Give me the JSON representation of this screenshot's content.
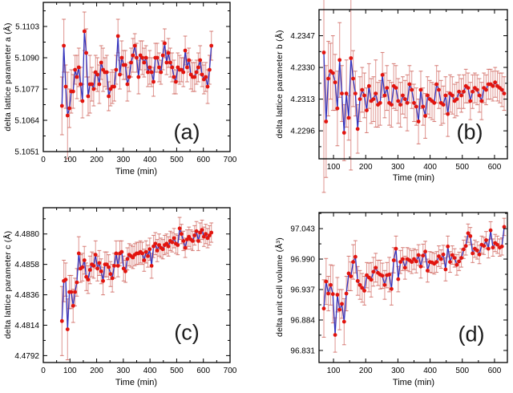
{
  "colors": {
    "marker": "#e2140e",
    "line": "#3434bd",
    "errorbar": "rgba(203,80,72,0.55)",
    "errorcap": "rgba(206,96,88,0.75)",
    "frame": "#000000",
    "text": "#000000"
  },
  "chart_data": [
    {
      "type": "line",
      "panel_label": "(a)",
      "xlabel": "Time (min)",
      "ylabel": "delta lattice parameter a (Å)",
      "xlim": [
        0,
        700
      ],
      "ylim": [
        5.1051,
        5.1113
      ],
      "xticks": [
        "0",
        "100",
        "200",
        "300",
        "400",
        "500",
        "600",
        "700"
      ],
      "yticks": [
        "5.1051",
        "5.1064",
        "5.1077",
        "5.1090",
        "5.1103"
      ],
      "grid": false,
      "x": [
        70,
        77,
        84,
        91,
        98,
        105,
        112,
        119,
        126,
        133,
        140,
        147,
        154,
        161,
        168,
        175,
        182,
        189,
        196,
        203,
        210,
        217,
        224,
        231,
        238,
        245,
        252,
        259,
        266,
        273,
        280,
        287,
        294,
        301,
        308,
        315,
        322,
        329,
        336,
        343,
        350,
        357,
        364,
        371,
        378,
        385,
        392,
        399,
        406,
        413,
        420,
        427,
        434,
        441,
        448,
        455,
        462,
        469,
        476,
        483,
        490,
        497,
        504,
        511,
        518,
        525,
        532,
        539,
        546,
        553,
        560,
        567,
        574,
        581,
        588,
        595,
        602,
        609,
        616,
        623,
        630
      ],
      "y": [
        5.107,
        5.1095,
        5.1078,
        5.1066,
        5.1069,
        5.1076,
        5.1076,
        5.1085,
        5.1082,
        5.1086,
        5.1079,
        5.1072,
        5.1101,
        5.1092,
        5.1074,
        5.1079,
        5.1079,
        5.1077,
        5.1084,
        5.1083,
        5.1079,
        5.1088,
        5.1085,
        5.1084,
        5.1084,
        5.1074,
        5.1077,
        5.1078,
        5.1078,
        5.1085,
        5.1099,
        5.1083,
        5.109,
        5.1087,
        5.1087,
        5.1079,
        5.1082,
        5.1088,
        5.1091,
        5.1095,
        5.109,
        5.1082,
        5.1091,
        5.109,
        5.1088,
        5.109,
        5.1084,
        5.1086,
        5.1084,
        5.108,
        5.109,
        5.109,
        5.1086,
        5.1084,
        5.1091,
        5.1096,
        5.1088,
        5.1092,
        5.1088,
        5.1086,
        5.1082,
        5.108,
        5.1086,
        5.1085,
        5.1085,
        5.1084,
        5.1093,
        5.1086,
        5.1089,
        5.1083,
        5.1082,
        5.1082,
        5.1084,
        5.1086,
        5.1089,
        5.1083,
        5.1081,
        5.1082,
        5.1078,
        5.1085,
        5.1095
      ],
      "yerr": [
        0.0012,
        0.0011,
        0.0009,
        0.0018,
        0.0008,
        0.0009,
        0.0007,
        0.0006,
        0.0009,
        0.0008,
        0.0007,
        0.0007,
        0.0008,
        0.001,
        0.0008,
        0.0012,
        0.0007,
        0.0007,
        0.0007,
        0.0007,
        0.0008,
        0.0007,
        0.0009,
        0.0006,
        0.0007,
        0.0006,
        0.0007,
        0.0007,
        0.0006,
        0.0006,
        0.0007,
        0.0006,
        0.0007,
        0.0006,
        0.0006,
        0.0007,
        0.0006,
        0.0006,
        0.0007,
        0.0005,
        0.0006,
        0.0007,
        0.0006,
        0.0007,
        0.0006,
        0.0005,
        0.0006,
        0.0007,
        0.0006,
        0.0006,
        0.0006,
        0.0006,
        0.0006,
        0.0005,
        0.0006,
        0.0006,
        0.0005,
        0.0006,
        0.0006,
        0.0006,
        0.0007,
        0.0005,
        0.0006,
        0.0006,
        0.0005,
        0.0006,
        0.0006,
        0.0006,
        0.0005,
        0.0006,
        0.0006,
        0.0006,
        0.0005,
        0.0006,
        0.0006,
        0.0005,
        0.0006,
        0.0006,
        0.0007,
        0.0006,
        0.0006
      ]
    },
    {
      "type": "line",
      "panel_label": "(b)",
      "xlabel": "Time (min)",
      "ylabel": "delta lattice parameter b (Å)",
      "xlim": [
        55,
        640
      ],
      "ylim": [
        4.2281,
        4.2361
      ],
      "xticks": [
        "100",
        "200",
        "300",
        "400",
        "500",
        "600"
      ],
      "yticks": [
        "4.2296",
        "4.2313",
        "4.2330",
        "4.2347"
      ],
      "grid": false,
      "x": [
        70,
        77,
        84,
        91,
        98,
        105,
        112,
        119,
        126,
        133,
        140,
        147,
        154,
        161,
        168,
        175,
        182,
        189,
        196,
        203,
        210,
        217,
        224,
        231,
        238,
        245,
        252,
        259,
        266,
        273,
        280,
        287,
        294,
        301,
        308,
        315,
        322,
        329,
        336,
        343,
        350,
        357,
        364,
        371,
        378,
        385,
        392,
        399,
        406,
        413,
        420,
        427,
        434,
        441,
        448,
        455,
        462,
        469,
        476,
        483,
        490,
        497,
        504,
        511,
        518,
        525,
        532,
        539,
        546,
        553,
        560,
        567,
        574,
        581,
        588,
        595,
        602,
        609,
        616,
        623,
        630
      ],
      "y": [
        4.2338,
        4.2301,
        4.2324,
        4.2328,
        4.2327,
        4.2322,
        4.2308,
        4.2334,
        4.2316,
        4.2295,
        4.2316,
        4.2303,
        4.2335,
        4.2324,
        4.2316,
        4.2297,
        4.2313,
        4.2318,
        4.2315,
        4.2307,
        4.232,
        4.2312,
        4.2313,
        4.2316,
        4.231,
        4.2311,
        4.2326,
        4.2315,
        4.2319,
        4.2311,
        4.231,
        4.232,
        4.2319,
        4.2312,
        4.231,
        4.2315,
        4.2313,
        4.2311,
        4.2321,
        4.2318,
        4.2311,
        4.2309,
        4.2301,
        4.2318,
        4.2309,
        4.2304,
        4.2315,
        4.2313,
        4.2312,
        4.2311,
        4.2321,
        4.2318,
        4.2311,
        4.231,
        4.2315,
        4.2305,
        4.2316,
        4.2315,
        4.2312,
        4.2313,
        4.2317,
        4.2315,
        4.2317,
        4.232,
        4.2319,
        4.2312,
        4.2317,
        4.2319,
        4.2318,
        4.2315,
        4.2312,
        4.2319,
        4.2318,
        4.2321,
        4.2321,
        4.232,
        4.2322,
        4.232,
        4.2319,
        4.2318,
        4.2316
      ],
      "yerr": [
        0.0075,
        0.003,
        0.002,
        0.0015,
        0.002,
        0.0015,
        0.002,
        0.002,
        0.0015,
        0.0015,
        0.0018,
        0.0012,
        0.006,
        0.0015,
        0.0012,
        0.0013,
        0.0012,
        0.0012,
        0.0012,
        0.0012,
        0.0012,
        0.0012,
        0.0012,
        0.0018,
        0.0012,
        0.0012,
        0.0012,
        0.0012,
        0.0012,
        0.0012,
        0.0012,
        0.0012,
        0.0012,
        0.0012,
        0.0012,
        0.001,
        0.001,
        0.0015,
        0.001,
        0.001,
        0.001,
        0.001,
        0.0012,
        0.001,
        0.001,
        0.0012,
        0.001,
        0.001,
        0.001,
        0.001,
        0.001,
        0.001,
        0.0012,
        0.001,
        0.001,
        0.0012,
        0.001,
        0.001,
        0.0009,
        0.0009,
        0.0009,
        0.0009,
        0.0009,
        0.0009,
        0.0008,
        0.001,
        0.0009,
        0.0008,
        0.0008,
        0.0009,
        0.001,
        0.0008,
        0.0008,
        0.0008,
        0.0008,
        0.0008,
        0.0008,
        0.0008,
        0.0008,
        0.0009,
        0.0009
      ]
    },
    {
      "type": "line",
      "panel_label": "(c)",
      "xlabel": "Time (min)",
      "ylabel": "delta lattice parameter c (Å)",
      "xlim": [
        0,
        700
      ],
      "ylim": [
        4.4787,
        4.4899
      ],
      "xticks": [
        "0",
        "100",
        "200",
        "300",
        "400",
        "500",
        "600",
        "700"
      ],
      "yticks": [
        "4.4792",
        "4.4814",
        "4.4836",
        "4.4858",
        "4.4880"
      ],
      "grid": false,
      "x": [
        70,
        77,
        84,
        91,
        98,
        105,
        112,
        119,
        126,
        133,
        140,
        147,
        154,
        161,
        168,
        175,
        182,
        189,
        196,
        203,
        210,
        217,
        224,
        231,
        238,
        245,
        252,
        259,
        266,
        273,
        280,
        287,
        294,
        301,
        308,
        315,
        322,
        329,
        336,
        343,
        350,
        357,
        364,
        371,
        378,
        385,
        392,
        399,
        406,
        413,
        420,
        427,
        434,
        441,
        448,
        455,
        462,
        469,
        476,
        483,
        490,
        497,
        504,
        511,
        518,
        525,
        532,
        539,
        546,
        553,
        560,
        567,
        574,
        581,
        588,
        595,
        602,
        609,
        616,
        623,
        630
      ],
      "y": [
        4.4817,
        4.4846,
        4.4847,
        4.4811,
        4.4838,
        4.4838,
        4.4828,
        4.4838,
        4.4845,
        4.4866,
        4.4855,
        4.4856,
        4.4861,
        4.4849,
        4.4847,
        4.4854,
        4.4858,
        4.4857,
        4.4865,
        4.4855,
        4.4859,
        4.4853,
        4.4846,
        4.4858,
        4.4858,
        4.4856,
        4.4851,
        4.4848,
        4.4857,
        4.4866,
        4.4857,
        4.4866,
        4.4867,
        4.4855,
        4.4853,
        4.4862,
        4.4865,
        4.4864,
        4.4863,
        4.4865,
        4.4866,
        4.4866,
        4.4867,
        4.4866,
        4.4861,
        4.4867,
        4.4864,
        4.4869,
        4.4857,
        4.4871,
        4.4873,
        4.4868,
        4.4872,
        4.487,
        4.4869,
        4.4872,
        4.4873,
        4.4871,
        4.4875,
        4.4874,
        4.4877,
        4.4873,
        4.4872,
        4.4884,
        4.488,
        4.4875,
        4.487,
        4.4876,
        4.4878,
        4.4876,
        4.4875,
        4.4879,
        4.4882,
        4.4875,
        4.4881,
        4.4883,
        4.4878,
        4.488,
        4.4877,
        4.4879,
        4.4881
      ],
      "yerr": [
        0.0025,
        0.0015,
        0.0012,
        0.0022,
        0.0012,
        0.0012,
        0.0012,
        0.001,
        0.001,
        0.0012,
        0.001,
        0.001,
        0.001,
        0.001,
        0.001,
        0.001,
        0.0009,
        0.0009,
        0.001,
        0.0009,
        0.0009,
        0.0009,
        0.001,
        0.0009,
        0.0009,
        0.0009,
        0.0009,
        0.001,
        0.0009,
        0.0009,
        0.0008,
        0.0009,
        0.0008,
        0.0009,
        0.0008,
        0.0008,
        0.0008,
        0.0008,
        0.0008,
        0.0008,
        0.0008,
        0.0008,
        0.0008,
        0.0008,
        0.0008,
        0.0008,
        0.0008,
        0.0008,
        0.0009,
        0.0008,
        0.0008,
        0.0008,
        0.0008,
        0.0007,
        0.0007,
        0.0007,
        0.0007,
        0.0007,
        0.0007,
        0.0007,
        0.0007,
        0.0007,
        0.0007,
        0.0008,
        0.0007,
        0.0007,
        0.0007,
        0.0007,
        0.0007,
        0.0007,
        0.0007,
        0.0007,
        0.0007,
        0.0007,
        0.0007,
        0.0007,
        0.0007,
        0.0007,
        0.0007,
        0.0007,
        0.0007
      ]
    },
    {
      "type": "line",
      "panel_label": "(d)",
      "xlabel": "Time (min)",
      "ylabel": "delta unit cell volume (Å³)",
      "xlim": [
        55,
        640
      ],
      "ylim": [
        96.81,
        97.071
      ],
      "xticks": [
        "100",
        "200",
        "300",
        "400",
        "500",
        "600"
      ],
      "yticks": [
        "96.831",
        "96.884",
        "96.937",
        "96.990",
        "97.043"
      ],
      "grid": false,
      "x": [
        70,
        77,
        84,
        91,
        98,
        105,
        112,
        119,
        126,
        133,
        140,
        147,
        154,
        161,
        168,
        175,
        182,
        189,
        196,
        203,
        210,
        217,
        224,
        231,
        238,
        245,
        252,
        259,
        266,
        273,
        280,
        287,
        294,
        301,
        308,
        315,
        322,
        329,
        336,
        343,
        350,
        357,
        364,
        371,
        378,
        385,
        392,
        399,
        406,
        413,
        420,
        427,
        434,
        441,
        448,
        455,
        462,
        469,
        476,
        483,
        490,
        497,
        504,
        511,
        518,
        525,
        532,
        539,
        546,
        553,
        560,
        567,
        574,
        581,
        588,
        595,
        602,
        609,
        616,
        623,
        630
      ],
      "y": [
        96.904,
        96.951,
        96.93,
        96.945,
        96.929,
        96.858,
        96.928,
        96.902,
        96.912,
        96.881,
        96.93,
        96.965,
        96.96,
        96.985,
        96.994,
        96.952,
        96.945,
        96.94,
        96.935,
        96.962,
        96.958,
        96.954,
        96.968,
        96.975,
        96.966,
        96.963,
        96.961,
        96.945,
        96.962,
        96.963,
        96.938,
        96.988,
        97.008,
        96.955,
        96.985,
        96.99,
        96.975,
        96.99,
        96.988,
        96.985,
        96.99,
        96.986,
        96.997,
        96.977,
        96.996,
        97.003,
        96.97,
        96.985,
        96.984,
        96.982,
        96.985,
        96.995,
        96.99,
        96.998,
        96.972,
        97.012,
        96.985,
        96.997,
        96.992,
        96.98,
        96.986,
        96.992,
        97.007,
        97.013,
        97.035,
        97.03,
        97.0,
        97.008,
        97.005,
        96.998,
        97.015,
        97.013,
        97.023,
        97.008,
        97.04,
        97.01,
        97.018,
        97.015,
        97.01,
        97.012,
        97.046
      ],
      "yerr": [
        0.05,
        0.04,
        0.03,
        0.035,
        0.05,
        0.03,
        0.03,
        0.035,
        0.025,
        0.04,
        0.03,
        0.03,
        0.025,
        0.03,
        0.028,
        0.025,
        0.025,
        0.025,
        0.025,
        0.022,
        0.025,
        0.03,
        0.025,
        0.025,
        0.022,
        0.025,
        0.022,
        0.025,
        0.022,
        0.03,
        0.028,
        0.022,
        0.022,
        0.022,
        0.02,
        0.02,
        0.02,
        0.02,
        0.02,
        0.02,
        0.018,
        0.02,
        0.018,
        0.02,
        0.02,
        0.018,
        0.02,
        0.018,
        0.018,
        0.018,
        0.018,
        0.018,
        0.016,
        0.016,
        0.02,
        0.018,
        0.018,
        0.016,
        0.016,
        0.018,
        0.016,
        0.016,
        0.016,
        0.016,
        0.016,
        0.015,
        0.016,
        0.015,
        0.015,
        0.016,
        0.015,
        0.015,
        0.015,
        0.016,
        0.015,
        0.015,
        0.015,
        0.015,
        0.015,
        0.015,
        0.015
      ]
    }
  ]
}
